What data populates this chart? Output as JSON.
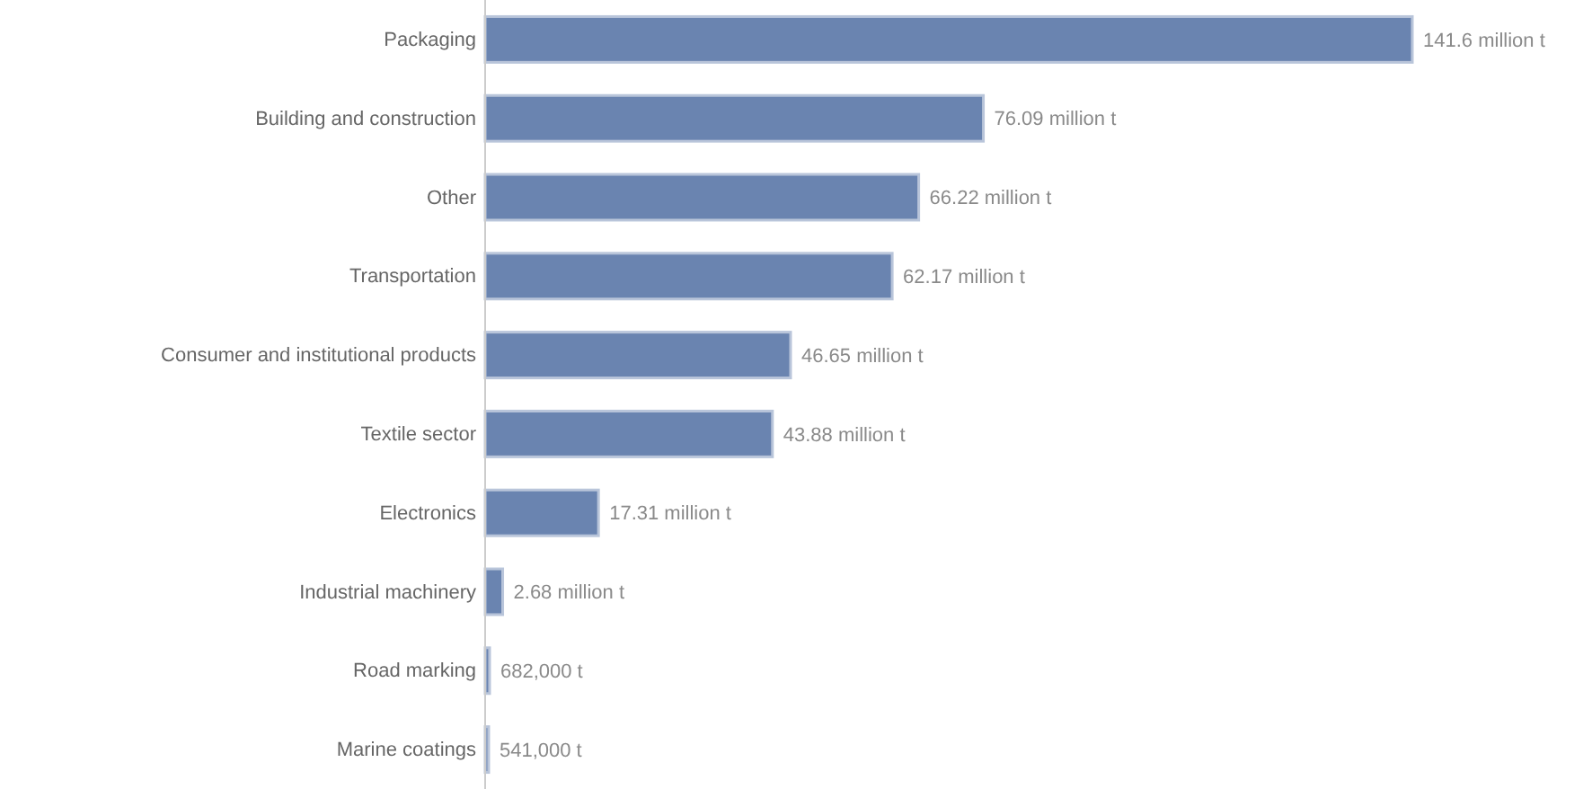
{
  "chart_data": {
    "type": "bar",
    "orientation": "horizontal",
    "categories": [
      "Packaging",
      "Building and construction",
      "Other",
      "Transportation",
      "Consumer and institutional products",
      "Textile sector",
      "Electronics",
      "Industrial machinery",
      "Road marking",
      "Marine coatings"
    ],
    "values": [
      141600000,
      76090000,
      66220000,
      62170000,
      46650000,
      43880000,
      17310000,
      2680000,
      682000,
      541000
    ],
    "value_labels": [
      "141.6 million t",
      "76.09 million t",
      "66.22 million t",
      "62.17 million t",
      "46.65 million t",
      "43.88 million t",
      "17.31 million t",
      "2.68 million t",
      "682,000 t",
      "541,000 t"
    ],
    "color": "#6a84b0"
  }
}
